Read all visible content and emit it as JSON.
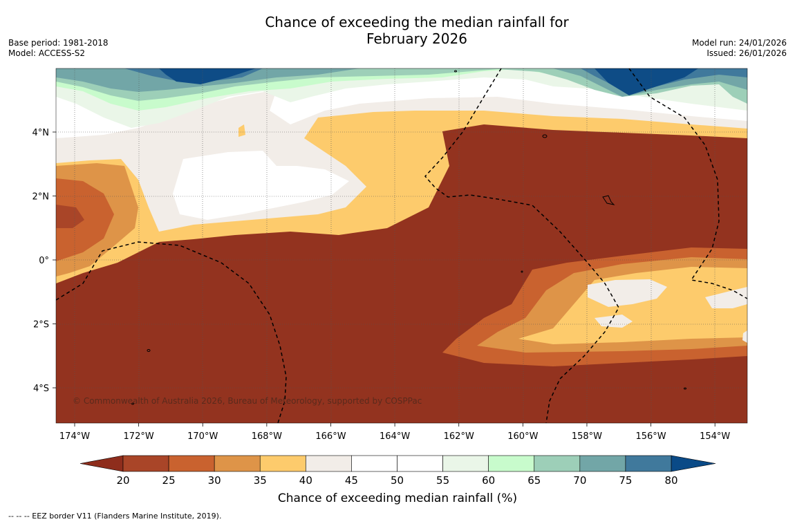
{
  "title": {
    "line1": "Chance of exceeding the median rainfall for",
    "line2": "February 2026"
  },
  "meta": {
    "base_period": "Base period: 1981-2018",
    "model": "Model: ACCESS-S2",
    "model_run": "Model run: 24/01/2026",
    "issued": "Issued: 26/01/2026"
  },
  "map": {
    "copyright": "© Commonwealth of Australia 2026, Bureau of Meteorology, supported by COSPPac",
    "x_ticks": [
      "174°W",
      "172°W",
      "170°W",
      "168°W",
      "166°W",
      "164°W",
      "162°W",
      "160°W",
      "158°W",
      "156°W",
      "154°W"
    ],
    "y_ticks": [
      "4°N",
      "2°N",
      "0°",
      "2°S",
      "4°S"
    ],
    "outline_color": "#000000"
  },
  "colorbar": {
    "label": "Chance of exceeding median rainfall (%)",
    "ticks": [
      "20",
      "25",
      "30",
      "35",
      "40",
      "45",
      "50",
      "55",
      "60",
      "65",
      "70",
      "75",
      "80"
    ],
    "low_color": "#8e2d1c",
    "high_color": "#0a4a87",
    "colors": [
      "#a94528",
      "#c9622f",
      "#de9448",
      "#fdcb6c",
      "#f2ede8",
      "#ffffff",
      "#ffffff",
      "#eaf6e8",
      "#c8fbcc",
      "#9dcfb8",
      "#72a6a7",
      "#40799c"
    ]
  },
  "footer": {
    "text": "--  --  -- EEZ border V11 (Flanders Marine Institute, 2019)."
  }
}
